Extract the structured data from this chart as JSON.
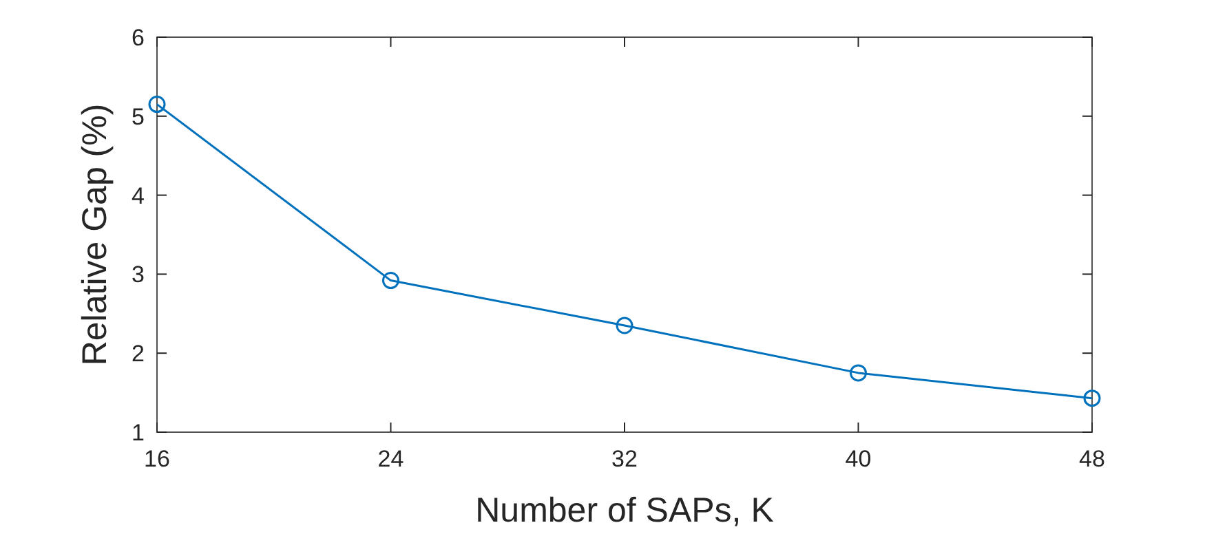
{
  "chart_data": {
    "type": "line",
    "xlabel": "Number of SAPs, K",
    "ylabel": "Relative Gap (%)",
    "x": [
      16,
      24,
      32,
      40,
      48
    ],
    "series": [
      {
        "color": "#0072bd",
        "values": [
          5.15,
          2.92,
          2.35,
          1.75,
          1.43
        ]
      }
    ],
    "xlim": [
      16,
      48
    ],
    "xticks": [
      16,
      24,
      32,
      40,
      48
    ],
    "ylim": [
      1,
      6
    ],
    "yticks": [
      1,
      2,
      3,
      4,
      5,
      6
    ],
    "marker": "circle",
    "line_style": "solid",
    "grid": false
  }
}
